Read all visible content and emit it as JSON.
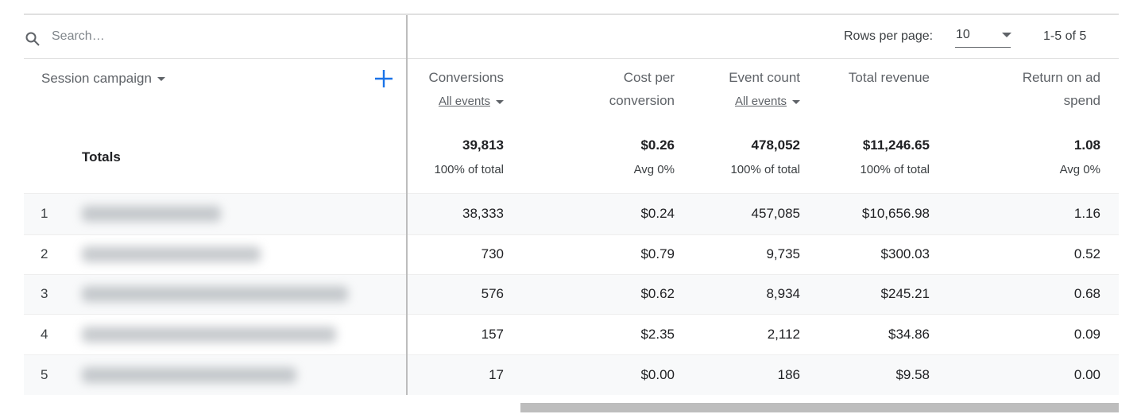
{
  "toolbar": {
    "search_placeholder": "Search…",
    "rows_per_page_label": "Rows per page:",
    "rows_per_page": "10",
    "range": "1-5 of 5"
  },
  "table": {
    "dimension": "Session campaign",
    "columns": [
      {
        "name": "Conversions",
        "sub": "All events"
      },
      {
        "name": "Cost per conversion"
      },
      {
        "name": "Event count",
        "sub": "All events"
      },
      {
        "name": "Total revenue"
      },
      {
        "name": "Return on ad spend"
      }
    ],
    "totals": {
      "label": "Totals",
      "values": [
        "39,813",
        "$0.26",
        "478,052",
        "$11,246.65",
        "1.08"
      ],
      "notes": [
        "100% of total",
        "Avg 0%",
        "100% of total",
        "100% of total",
        "Avg 0%"
      ]
    },
    "rows": [
      {
        "index": "1",
        "values": [
          "38,333",
          "$0.24",
          "457,085",
          "$10,656.98",
          "1.16"
        ]
      },
      {
        "index": "2",
        "values": [
          "730",
          "$0.79",
          "9,735",
          "$300.03",
          "0.52"
        ]
      },
      {
        "index": "3",
        "values": [
          "576",
          "$0.62",
          "8,934",
          "$245.21",
          "0.68"
        ]
      },
      {
        "index": "4",
        "values": [
          "157",
          "$2.35",
          "2,112",
          "$34.86",
          "0.09"
        ]
      },
      {
        "index": "5",
        "values": [
          "17",
          "$0.00",
          "186",
          "$9.58",
          "0.00"
        ]
      }
    ]
  }
}
